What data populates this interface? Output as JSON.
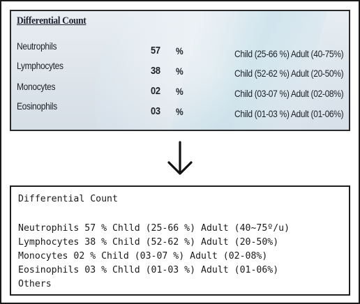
{
  "photo": {
    "title": "Differential Count",
    "rows": [
      {
        "name": "Neutrophils",
        "value": "57",
        "unit": "%",
        "range": "Child (25-66 %) Adult (40-75%)"
      },
      {
        "name": "Lymphocytes",
        "value": "38",
        "unit": "%",
        "range": "Child (52-62 %) Adult (20-50%)"
      },
      {
        "name": "Monocytes",
        "value": "02",
        "unit": "%",
        "range": "Child (03-07 %) Adult (02-08%)"
      },
      {
        "name": "Eosinophils",
        "value": "03",
        "unit": "%",
        "range": "Child (01-03 %) Adult (01-06%)"
      }
    ]
  },
  "arrow": {
    "icon": "down-arrow-icon"
  },
  "ocr": {
    "title": "Differential Count",
    "lines": [
      "Neutrophils 57 % Chlld (25-66 %) Adult (40~75º/u)",
      "Lymphocytes 38 % Child (52-62 %) Adult (20-50%)",
      "Monocytes 02 % Child (03-07 %) Adult (02-08%)",
      "Eosinophils 03 % Chlld (01-03 %) Adult (01-06%)",
      "Others"
    ]
  }
}
